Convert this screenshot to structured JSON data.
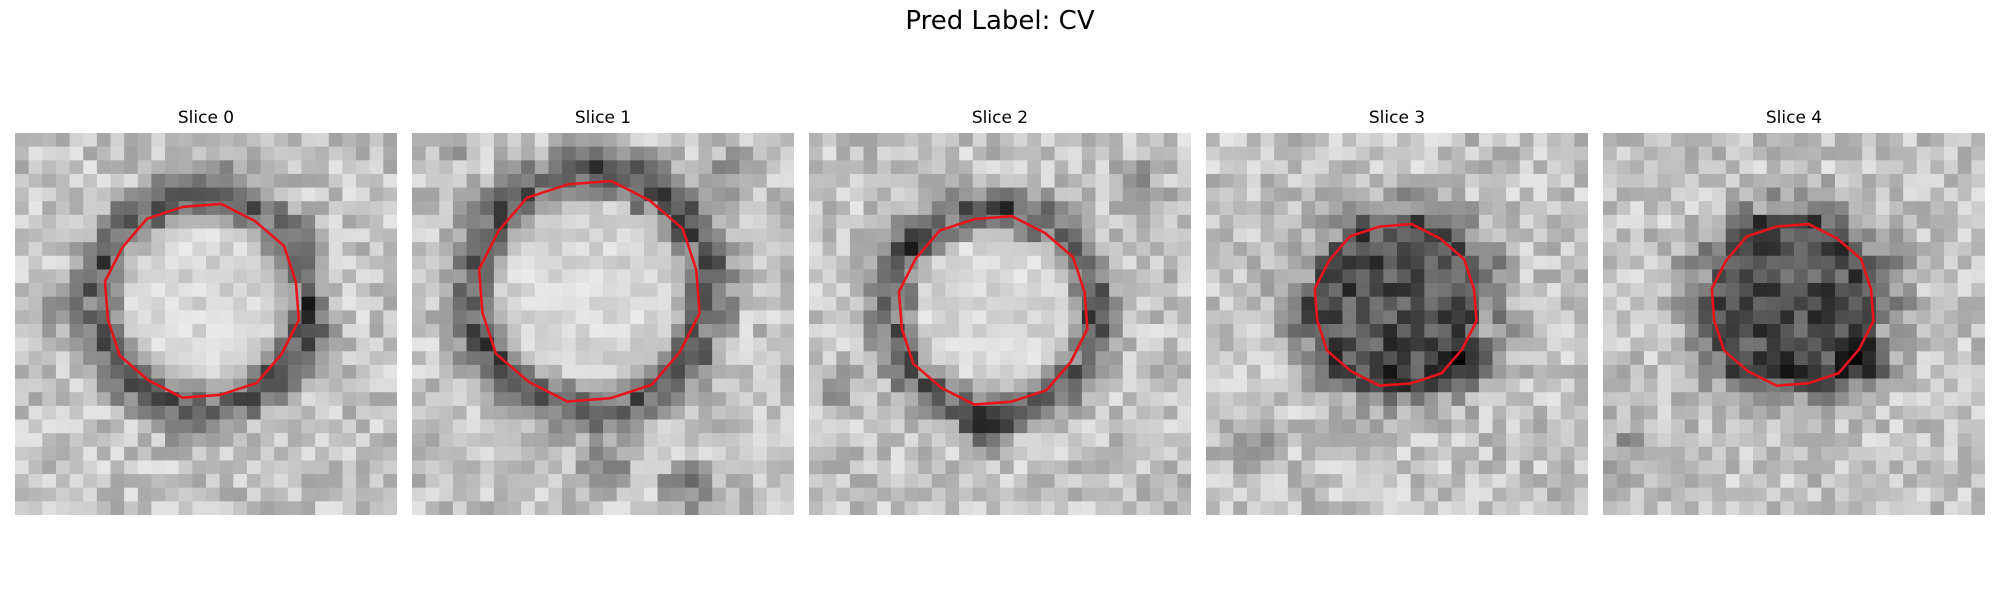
{
  "figure": {
    "suptitle": "Pred Label: CV"
  },
  "panels": [
    {
      "title": "Slice 0",
      "contour_color": "#e8141c"
    },
    {
      "title": "Slice 1",
      "contour_color": "#e8141c"
    },
    {
      "title": "Slice 2",
      "contour_color": "#e8141c"
    },
    {
      "title": "Slice 3",
      "contour_color": "#e8141c"
    },
    {
      "title": "Slice 4",
      "contour_color": "#e8141c"
    }
  ]
}
